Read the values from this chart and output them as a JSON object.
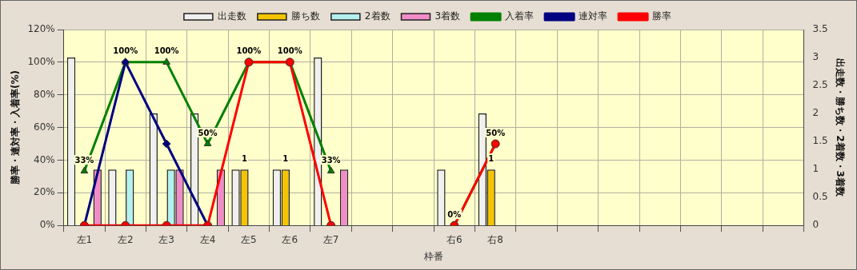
{
  "chart_data": {
    "type": "bar",
    "xlabel": "枠番",
    "ylabel": "勝率・連対率・入着率(%)",
    "y2label": "出走数・勝ち数・2着数・3着数",
    "categories": [
      "左1",
      "左2",
      "左3",
      "左4",
      "左5",
      "左6",
      "左7",
      null,
      null,
      "右6",
      "右8",
      null,
      null,
      null,
      null,
      null,
      null,
      null
    ],
    "series": [
      {
        "name": "出走数",
        "axis": "y2",
        "color": "#f0f0f0",
        "values": [
          3,
          1,
          2,
          2,
          1,
          1,
          3,
          null,
          null,
          1,
          2,
          null,
          null,
          null,
          null,
          null,
          null,
          null
        ]
      },
      {
        "name": "勝ち数",
        "axis": "y2",
        "color": "#f5c400",
        "values": [
          0,
          0,
          0,
          0,
          1,
          1,
          0,
          null,
          null,
          0,
          1,
          null,
          null,
          null,
          null,
          null,
          null,
          null
        ],
        "value_labels": [
          null,
          null,
          null,
          null,
          "1",
          "1",
          null,
          null,
          null,
          null,
          "1",
          null,
          null,
          null,
          null,
          null,
          null,
          null
        ]
      },
      {
        "name": "2着数",
        "axis": "y2",
        "color": "#b4f0f0",
        "values": [
          0,
          1,
          1,
          0,
          0,
          0,
          0,
          null,
          null,
          0,
          0,
          null,
          null,
          null,
          null,
          null,
          null,
          null
        ]
      },
      {
        "name": "3着数",
        "axis": "y2",
        "color": "#f08cc8",
        "values": [
          1,
          0,
          1,
          1,
          0,
          0,
          1,
          null,
          null,
          0,
          0,
          null,
          null,
          null,
          null,
          null,
          null,
          null
        ]
      },
      {
        "name": "入着率",
        "type": "line",
        "axis": "y",
        "marker": "triangle",
        "color": "#008000",
        "values": [
          33.3,
          100,
          100,
          50,
          100,
          100,
          33.3,
          null,
          null,
          0,
          50,
          null,
          null,
          null,
          null,
          null,
          null,
          null
        ],
        "value_labels": [
          "33%",
          "100%",
          "100%",
          "50%",
          "100%",
          "100%",
          "33%",
          null,
          null,
          "0%",
          "50%",
          null,
          null,
          null,
          null,
          null,
          null,
          null
        ]
      },
      {
        "name": "連対率",
        "type": "line",
        "axis": "y",
        "marker": "diamond",
        "color": "#000080",
        "values": [
          0,
          100,
          50,
          0,
          null,
          null,
          null,
          null,
          null,
          null,
          null,
          null,
          null,
          null,
          null,
          null,
          null,
          null
        ]
      },
      {
        "name": "勝率",
        "type": "line",
        "axis": "y",
        "marker": "circle",
        "color": "#ff0000",
        "values": [
          0,
          0,
          0,
          0,
          100,
          100,
          0,
          null,
          null,
          0,
          50,
          null,
          null,
          null,
          null,
          null,
          null,
          null
        ]
      }
    ],
    "ylim": [
      0,
      120
    ],
    "yticks": [
      {
        "value": 0,
        "label": "0%"
      },
      {
        "value": 20,
        "label": "20%"
      },
      {
        "value": 40,
        "label": "40%"
      },
      {
        "value": 60,
        "label": "60%"
      },
      {
        "value": 80,
        "label": "80%"
      },
      {
        "value": 100,
        "label": "100%"
      },
      {
        "value": 120,
        "label": "120%"
      }
    ],
    "y2lim": [
      0,
      3.5
    ],
    "y2ticks": [
      0,
      0.5,
      1,
      1.5,
      2,
      2.5,
      3,
      3.5
    ],
    "grid": true,
    "legend": "top"
  }
}
